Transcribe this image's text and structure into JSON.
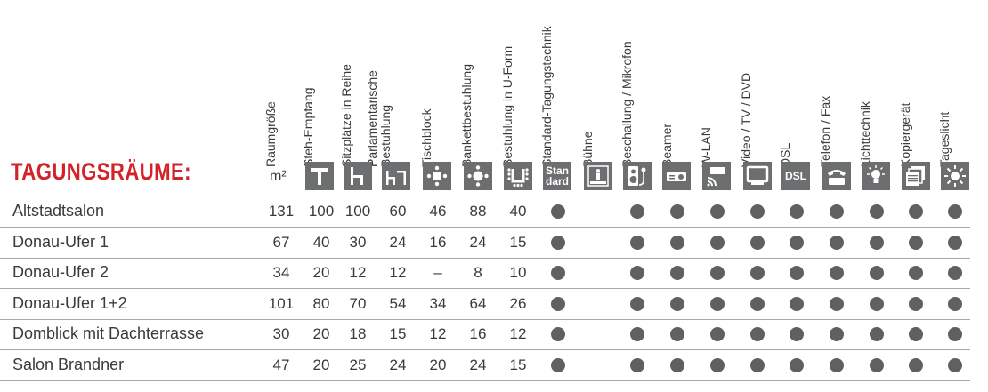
{
  "title": "TAGUNGSRÄUME:",
  "unit": "m²",
  "headers": [
    {
      "key": "raumgroesse",
      "label": "Raumgröße"
    },
    {
      "key": "steh",
      "label": "Steh-Empfang"
    },
    {
      "key": "reihe",
      "label": "Sitzplätze in Reihe"
    },
    {
      "key": "parl",
      "label": "Parlamentarische Bestuhlung"
    },
    {
      "key": "tisch",
      "label": "Tischblock"
    },
    {
      "key": "bankett",
      "label": "Bankettbestuhlung"
    },
    {
      "key": "uform",
      "label": "Bestuhlung in U-Form"
    },
    {
      "key": "standard",
      "label": "Standard-Tagungstechnik"
    },
    {
      "key": "buehne",
      "label": "Bühne"
    },
    {
      "key": "beschallung",
      "label": "Beschallung / Mikrofon"
    },
    {
      "key": "beamer",
      "label": "Beamer"
    },
    {
      "key": "wlan",
      "label": "W-LAN"
    },
    {
      "key": "video",
      "label": "Video / TV / DVD"
    },
    {
      "key": "dsl",
      "label": "DSL"
    },
    {
      "key": "telefon",
      "label": "Telefon / Fax"
    },
    {
      "key": "licht",
      "label": "Lichttechnik"
    },
    {
      "key": "kopierer",
      "label": "Kopiergerät"
    },
    {
      "key": "tageslicht",
      "label": "Tageslicht"
    }
  ],
  "icons": {
    "standard_text_1": "Stan",
    "standard_text_2": "dard",
    "dsl_text": "DSL"
  },
  "rooms": [
    {
      "name": "Altstadtsalon",
      "values": [
        "131",
        "100",
        "100",
        "60",
        "46",
        "88",
        "40"
      ],
      "features": [
        true,
        false,
        true,
        true,
        true,
        true,
        true,
        true,
        true,
        true,
        true
      ]
    },
    {
      "name": "Donau-Ufer 1",
      "values": [
        "67",
        "40",
        "30",
        "24",
        "16",
        "24",
        "15"
      ],
      "features": [
        true,
        false,
        true,
        true,
        true,
        true,
        true,
        true,
        true,
        true,
        true
      ]
    },
    {
      "name": "Donau-Ufer 2",
      "values": [
        "34",
        "20",
        "12",
        "12",
        "–",
        "8",
        "10"
      ],
      "features": [
        true,
        false,
        true,
        true,
        true,
        true,
        true,
        true,
        true,
        true,
        true
      ]
    },
    {
      "name": "Donau-Ufer 1+2",
      "values": [
        "101",
        "80",
        "70",
        "54",
        "34",
        "64",
        "26"
      ],
      "features": [
        true,
        false,
        true,
        true,
        true,
        true,
        true,
        true,
        true,
        true,
        true
      ]
    },
    {
      "name": "Domblick mit Dachterrasse",
      "values": [
        "30",
        "20",
        "18",
        "15",
        "12",
        "16",
        "12"
      ],
      "features": [
        true,
        false,
        true,
        true,
        true,
        true,
        true,
        true,
        true,
        true,
        true
      ]
    },
    {
      "name": "Salon Brandner",
      "values": [
        "47",
        "20",
        "25",
        "24",
        "20",
        "24",
        "15"
      ],
      "features": [
        true,
        false,
        true,
        true,
        true,
        true,
        true,
        true,
        true,
        true,
        true
      ]
    }
  ]
}
